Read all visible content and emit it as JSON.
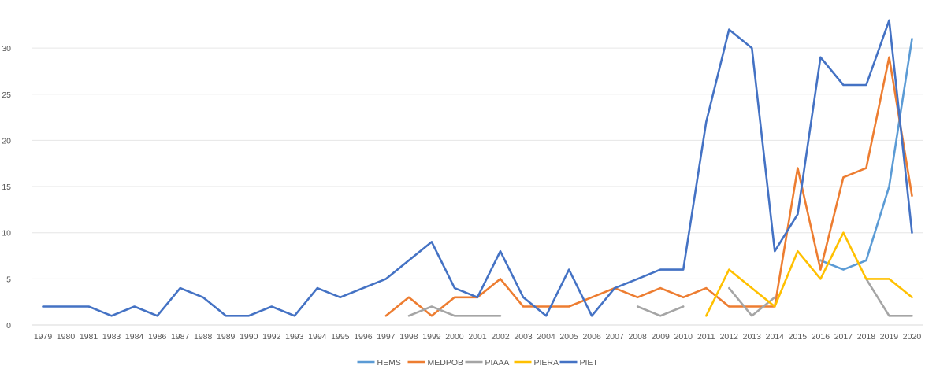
{
  "chart_data": {
    "type": "line",
    "title": "",
    "xlabel": "",
    "ylabel": "",
    "ylim": [
      0,
      35
    ],
    "yticks": [
      0,
      5,
      10,
      15,
      20,
      25,
      30
    ],
    "grid": true,
    "legend_position": "bottom",
    "categories": [
      "1979",
      "1980",
      "1981",
      "1983",
      "1984",
      "1986",
      "1987",
      "1988",
      "1989",
      "1990",
      "1992",
      "1993",
      "1994",
      "1995",
      "1996",
      "1997",
      "1998",
      "1999",
      "2000",
      "2001",
      "2002",
      "2003",
      "2004",
      "2005",
      "2006",
      "2007",
      "2008",
      "2009",
      "2010",
      "2011",
      "2012",
      "2013",
      "2014",
      "2015",
      "2016",
      "2017",
      "2018",
      "2019",
      "2020"
    ],
    "series": [
      {
        "name": "HEMS",
        "color": "#5B9BD5",
        "values": [
          null,
          null,
          null,
          null,
          null,
          null,
          null,
          null,
          null,
          null,
          null,
          null,
          null,
          null,
          null,
          null,
          null,
          null,
          null,
          null,
          null,
          null,
          null,
          null,
          null,
          null,
          null,
          null,
          null,
          null,
          null,
          null,
          null,
          null,
          7,
          6,
          7,
          15,
          31
        ]
      },
      {
        "name": "MEDPOB",
        "color": "#ED7D31",
        "values": [
          null,
          null,
          null,
          null,
          null,
          null,
          null,
          null,
          null,
          null,
          null,
          null,
          null,
          null,
          null,
          1,
          3,
          1,
          3,
          3,
          5,
          2,
          2,
          2,
          3,
          4,
          3,
          4,
          3,
          4,
          2,
          2,
          2,
          17,
          6,
          16,
          17,
          29,
          14
        ]
      },
      {
        "name": "PIAAA",
        "color": "#A5A5A5",
        "values": [
          null,
          null,
          null,
          null,
          null,
          null,
          null,
          null,
          null,
          null,
          null,
          null,
          null,
          null,
          null,
          null,
          1,
          2,
          1,
          1,
          1,
          null,
          null,
          null,
          null,
          null,
          2,
          1,
          2,
          null,
          4,
          1,
          3,
          null,
          7,
          null,
          5,
          1,
          1
        ]
      },
      {
        "name": "PIERA",
        "color": "#FFC000",
        "values": [
          null,
          null,
          null,
          null,
          null,
          null,
          null,
          null,
          null,
          null,
          null,
          null,
          null,
          null,
          null,
          null,
          null,
          null,
          null,
          null,
          null,
          null,
          null,
          null,
          null,
          null,
          null,
          null,
          null,
          1,
          6,
          4,
          2,
          8,
          5,
          10,
          5,
          5,
          3
        ]
      },
      {
        "name": "PIET",
        "color": "#4472C4",
        "values": [
          2,
          2,
          2,
          1,
          2,
          1,
          4,
          3,
          1,
          1,
          2,
          1,
          4,
          3,
          4,
          5,
          7,
          9,
          4,
          3,
          8,
          3,
          1,
          6,
          1,
          4,
          5,
          6,
          6,
          22,
          32,
          30,
          8,
          12,
          29,
          26,
          26,
          33,
          10
        ]
      }
    ]
  }
}
